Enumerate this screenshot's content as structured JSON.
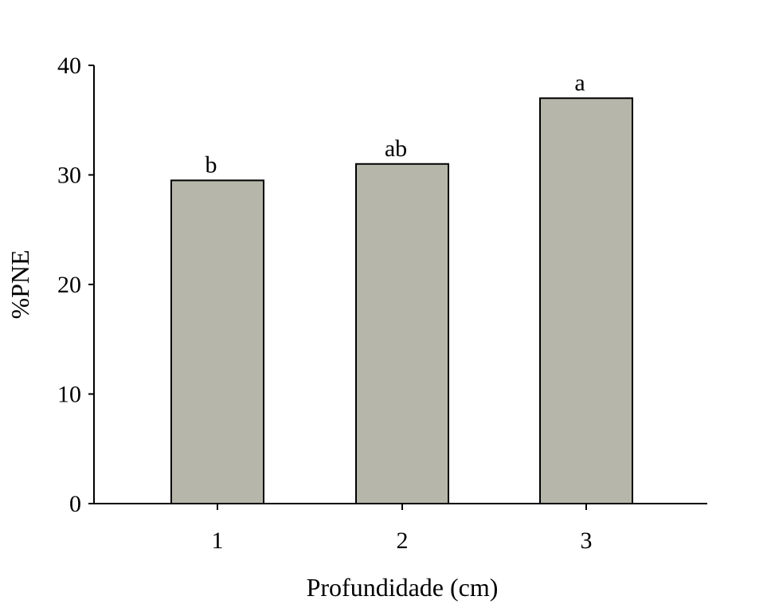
{
  "chart_data": {
    "type": "bar",
    "categories": [
      "1",
      "2",
      "3"
    ],
    "values": [
      29.5,
      31,
      37
    ],
    "data_labels": [
      "b",
      "ab",
      "a"
    ],
    "xlabel": "Profundidade (cm)",
    "ylabel": "%PNE",
    "ylim": [
      0,
      40
    ],
    "yticks": [
      "0",
      "10",
      "20",
      "30",
      "40"
    ],
    "grid": false,
    "bar_color": "#b6b6aa",
    "bar_edge_color": "#000000"
  }
}
